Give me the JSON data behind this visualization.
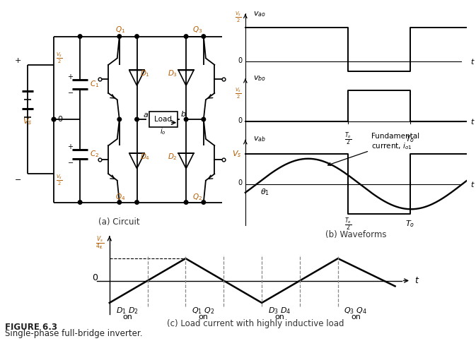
{
  "fig_width": 6.73,
  "fig_height": 4.83,
  "bg_color": "#ffffff",
  "line_color": "#000000",
  "label_color": "#b35c00",
  "caption_a": "(a) Circuit",
  "caption_b": "(b) Waveforms",
  "caption_c": "(c) Load current with highly inductive load",
  "figure_label": "FIGURE 6.3",
  "figure_caption": "Single-phase full-bridge inverter."
}
